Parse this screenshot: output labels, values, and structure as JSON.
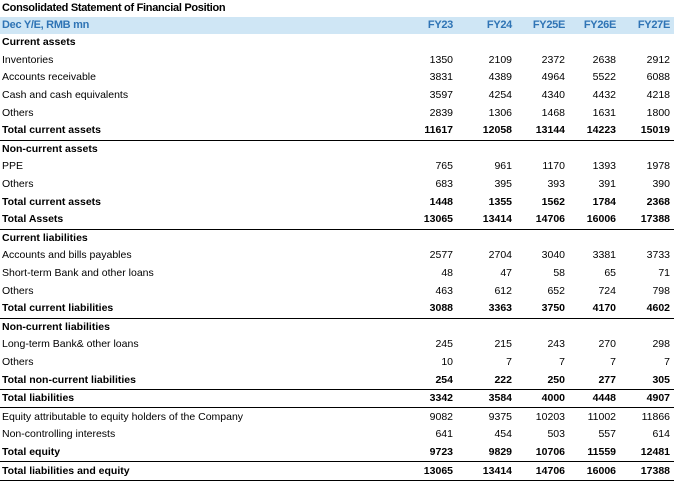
{
  "title": "Consolidated Statement of Financial Position",
  "header": {
    "label": "Dec Y/E, RMB mn",
    "columns": [
      "FY23",
      "FY24",
      "FY25E",
      "FY26E",
      "FY27E"
    ]
  },
  "colors": {
    "header_bg": "#cfe6f5",
    "header_text": "#2f74b5"
  },
  "rows": [
    {
      "label": "Current assets",
      "type": "section",
      "values": []
    },
    {
      "label": "Inventories",
      "values": [
        "1350",
        "2109",
        "2372",
        "2638",
        "2912"
      ]
    },
    {
      "label": "Accounts receivable",
      "values": [
        "3831",
        "4389",
        "4964",
        "5522",
        "6088"
      ]
    },
    {
      "label": "Cash and cash equivalents",
      "values": [
        "3597",
        "4254",
        "4340",
        "4432",
        "4218"
      ]
    },
    {
      "label": "Others",
      "values": [
        "2839",
        "1306",
        "1468",
        "1631",
        "1800"
      ]
    },
    {
      "label": "Total current assets",
      "type": "total-line",
      "values": [
        "11617",
        "12058",
        "13144",
        "14223",
        "15019"
      ]
    },
    {
      "label": "Non-current assets",
      "type": "section",
      "values": []
    },
    {
      "label": "PPE",
      "values": [
        "765",
        "961",
        "1170",
        "1393",
        "1978"
      ]
    },
    {
      "label": "Others",
      "values": [
        "683",
        "395",
        "393",
        "391",
        "390"
      ]
    },
    {
      "label": "Total current assets",
      "type": "total",
      "values": [
        "1448",
        "1355",
        "1562",
        "1784",
        "2368"
      ]
    },
    {
      "label": "Total Assets",
      "type": "total-line",
      "values": [
        "13065",
        "13414",
        "14706",
        "16006",
        "17388"
      ]
    },
    {
      "label": "Current liabilities",
      "type": "section",
      "values": []
    },
    {
      "label": "Accounts and bills payables",
      "values": [
        "2577",
        "2704",
        "3040",
        "3381",
        "3733"
      ]
    },
    {
      "label": "Short-term Bank and other loans",
      "values": [
        "48",
        "47",
        "58",
        "65",
        "71"
      ]
    },
    {
      "label": "Others",
      "values": [
        "463",
        "612",
        "652",
        "724",
        "798"
      ]
    },
    {
      "label": "Total current liabilities",
      "type": "total-line",
      "values": [
        "3088",
        "3363",
        "3750",
        "4170",
        "4602"
      ]
    },
    {
      "label": "Non-current liabilities",
      "type": "section",
      "values": []
    },
    {
      "label": "Long-term Bank& other loans",
      "values": [
        "245",
        "215",
        "243",
        "270",
        "298"
      ]
    },
    {
      "label": "Others",
      "values": [
        "10",
        "7",
        "7",
        "7",
        "7"
      ]
    },
    {
      "label": "Total non-current liabilities",
      "type": "total-line",
      "values": [
        "254",
        "222",
        "250",
        "277",
        "305"
      ]
    },
    {
      "label": "Total liabilities",
      "type": "total-line",
      "values": [
        "3342",
        "3584",
        "4000",
        "4448",
        "4907"
      ]
    },
    {
      "label": "Equity attributable to equity holders of the Company",
      "values": [
        "9082",
        "9375",
        "10203",
        "11002",
        "11866"
      ]
    },
    {
      "label": "Non-controlling interests",
      "values": [
        "641",
        "454",
        "503",
        "557",
        "614"
      ]
    },
    {
      "label": "Total equity",
      "type": "total-line",
      "values": [
        "9723",
        "9829",
        "10706",
        "11559",
        "12481"
      ]
    },
    {
      "label": "Total liabilities and equity",
      "type": "total-line",
      "values": [
        "13065",
        "13414",
        "14706",
        "16006",
        "17388"
      ]
    }
  ]
}
